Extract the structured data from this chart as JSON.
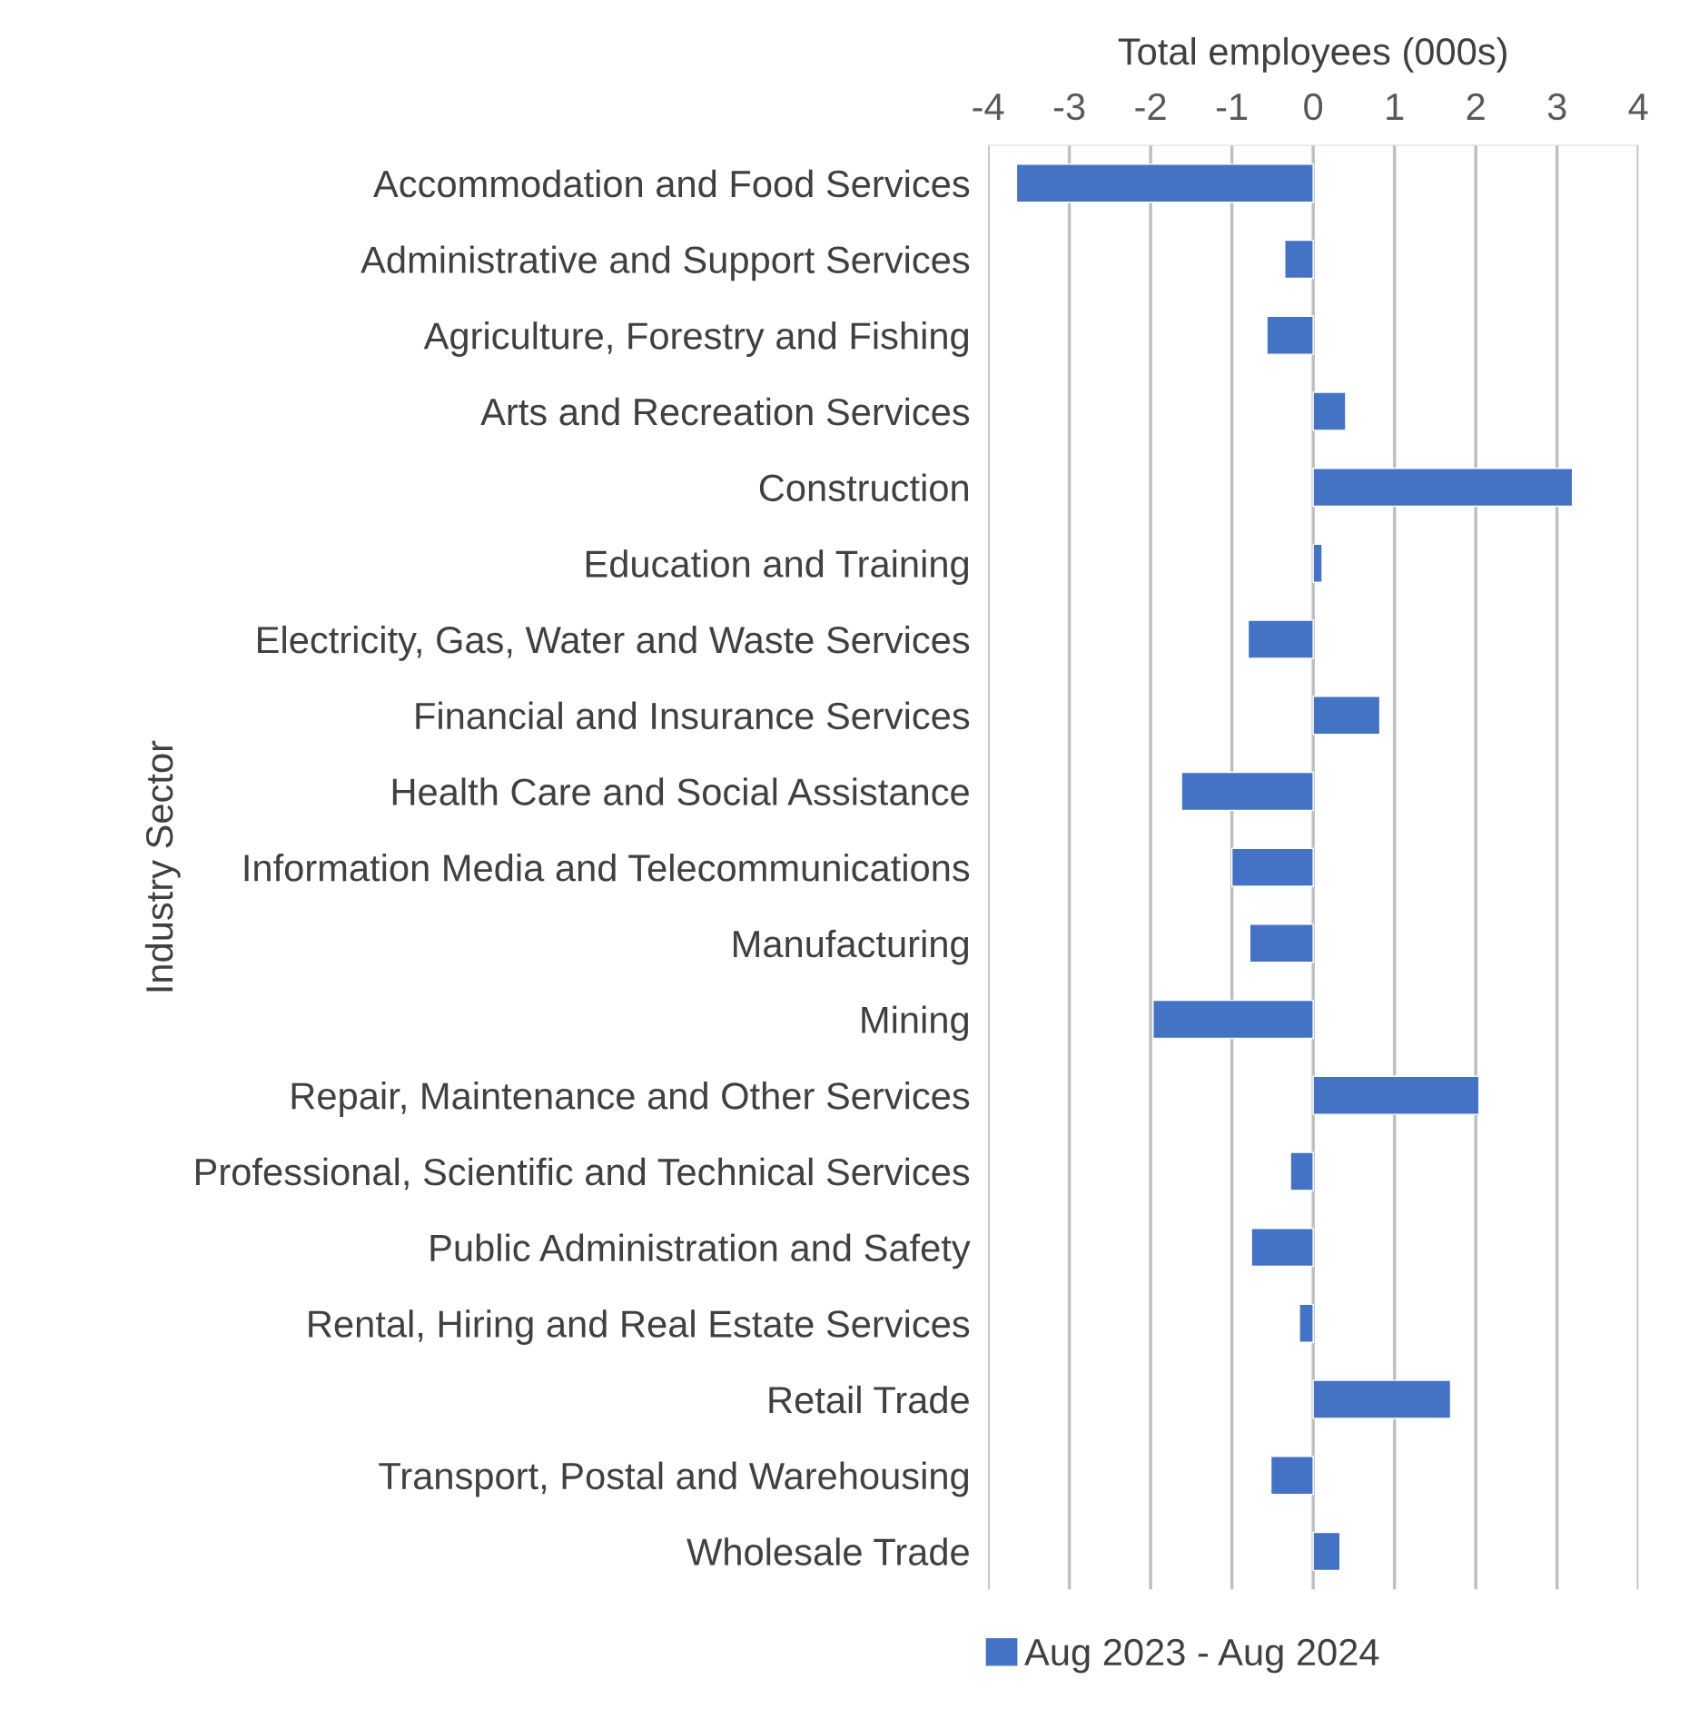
{
  "chart_data": {
    "type": "bar",
    "orientation": "horizontal",
    "xlabel": "Total employees (000s)",
    "ylabel": "Industry Sector",
    "categories": [
      "Accommodation and Food Services",
      "Administrative and Support Services",
      "Agriculture, Forestry and Fishing",
      "Arts and Recreation Services",
      "Construction",
      "Education and Training",
      "Electricity, Gas, Water and Waste Services",
      "Financial and Insurance Services",
      "Health Care and Social Assistance",
      "Information Media and Telecommunications",
      "Manufacturing",
      "Mining",
      "Repair, Maintenance and Other Services",
      "Professional, Scientific and Technical Services",
      "Public Administration and Safety",
      "Rental, Hiring and Real Estate Services",
      "Retail Trade",
      "Transport, Postal and Warehousing",
      "Wholesale Trade"
    ],
    "series": [
      {
        "name": "Aug 2023 - Aug 2024",
        "color": "#4472c4",
        "values": [
          -3.65,
          -0.35,
          -0.57,
          0.4,
          3.19,
          0.11,
          -0.8,
          0.82,
          -1.62,
          -1.0,
          -0.78,
          -1.97,
          2.04,
          -0.28,
          -0.76,
          -0.17,
          1.69,
          -0.52,
          0.33
        ]
      }
    ],
    "xlim": [
      -4,
      4
    ],
    "xticks": [
      -4,
      -3,
      -2,
      -1,
      0,
      1,
      2,
      3,
      4
    ],
    "grid": "x",
    "legend": "bottom"
  }
}
